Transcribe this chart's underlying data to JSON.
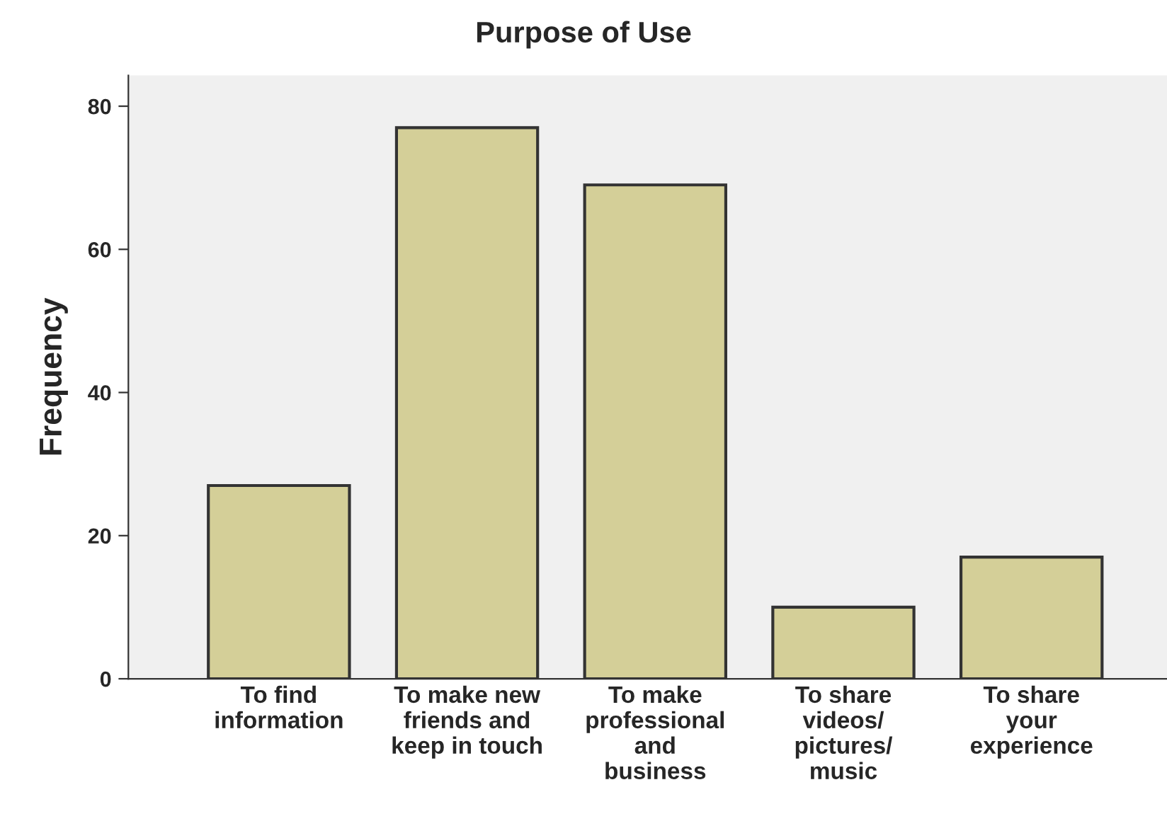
{
  "chart_data": {
    "type": "bar",
    "title": "Purpose of Use",
    "ylabel": "Frequency",
    "categories": [
      "To find\ninformation",
      "To make new\nfriends and\nkeep in touch",
      "To make\nprofessional\nand\nbusiness",
      "To share\nvideos/\npictures/\nmusic",
      "To share\nyour\nexperience"
    ],
    "values": [
      27,
      77,
      69,
      10,
      17
    ],
    "color": "#d4cf98",
    "ylim": [
      0,
      84.3
    ],
    "yticks": [
      0,
      20,
      40,
      60,
      80
    ],
    "grid": false,
    "legend": false
  }
}
